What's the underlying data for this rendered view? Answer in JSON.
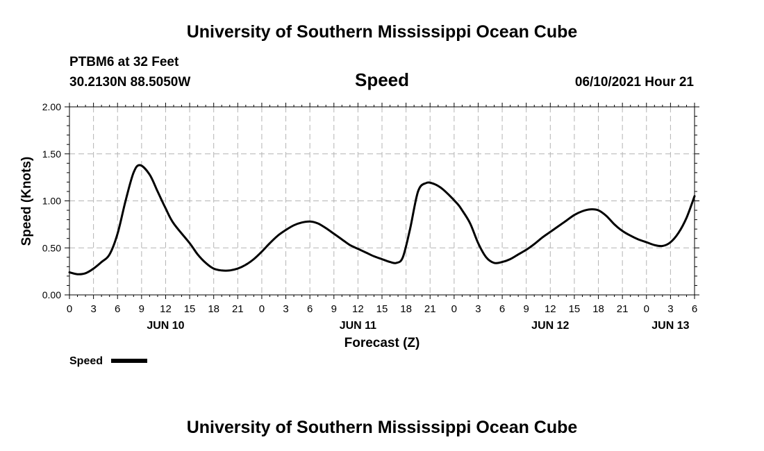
{
  "header": {
    "title": "University of Southern Mississippi Ocean Cube",
    "station": "PTBM6 at 32 Feet",
    "location": "30.2130N  88.5050W",
    "datetime": "06/10/2021 Hour 21"
  },
  "footer": {
    "title": "University of Southern Mississippi Ocean Cube"
  },
  "legend": {
    "label": "Speed",
    "line_color": "#000000"
  },
  "colors": {
    "line": "#000000",
    "grid": "#b3b3b3",
    "background": "#ffffff"
  },
  "chart_data": {
    "type": "line",
    "title": "Speed",
    "xlabel": "Forecast (Z)",
    "ylabel": "Speed (Knots)",
    "ylim": [
      0,
      2
    ],
    "xlim": [
      0,
      78
    ],
    "x_unit": "hours since JUN 10 00Z",
    "x_tick_labels": [
      "0",
      "3",
      "6",
      "9",
      "12",
      "15",
      "18",
      "21",
      "0",
      "3",
      "6",
      "9",
      "12",
      "15",
      "18",
      "21",
      "0",
      "3",
      "6",
      "9",
      "12",
      "15",
      "18",
      "21",
      "0",
      "3",
      "6"
    ],
    "y_ticks": [
      0,
      0.5,
      1,
      1.5,
      2
    ],
    "y_tick_labels": [
      "0.00",
      "0.50",
      "1.00",
      "1.50",
      "2.00"
    ],
    "date_labels": [
      {
        "label": "JUN 10",
        "x": 12
      },
      {
        "label": "JUN 11",
        "x": 36
      },
      {
        "label": "JUN 12",
        "x": 60
      },
      {
        "label": "JUN 13",
        "x": 75
      }
    ],
    "grid": true,
    "legend_position": "bottom-left",
    "series": [
      {
        "name": "Speed",
        "x": [
          0,
          1,
          2,
          3,
          4,
          5,
          6,
          7,
          8,
          8.8,
          10,
          11,
          12,
          13,
          15,
          16,
          17,
          18,
          19,
          20,
          21,
          22,
          23,
          24,
          25,
          26,
          27,
          28,
          29,
          30,
          31,
          32,
          33,
          34,
          35,
          36,
          37,
          38,
          39,
          40,
          40.8,
          41.6,
          42.5,
          43.5,
          44.5,
          45.5,
          46.5,
          47.5,
          48.5,
          49,
          50,
          51,
          52,
          53,
          54,
          55,
          56,
          57,
          58,
          59,
          60,
          61,
          62,
          63,
          64,
          65,
          66,
          67,
          68,
          69,
          70,
          71,
          72,
          73,
          74,
          75,
          76,
          77,
          78
        ],
        "values": [
          0.24,
          0.22,
          0.23,
          0.28,
          0.35,
          0.43,
          0.65,
          1.0,
          1.3,
          1.38,
          1.28,
          1.1,
          0.92,
          0.76,
          0.55,
          0.43,
          0.34,
          0.28,
          0.26,
          0.26,
          0.28,
          0.32,
          0.38,
          0.46,
          0.55,
          0.63,
          0.69,
          0.74,
          0.77,
          0.78,
          0.76,
          0.71,
          0.65,
          0.59,
          0.53,
          0.49,
          0.45,
          0.41,
          0.38,
          0.35,
          0.34,
          0.4,
          0.7,
          1.1,
          1.19,
          1.18,
          1.13,
          1.05,
          0.96,
          0.9,
          0.76,
          0.55,
          0.4,
          0.34,
          0.35,
          0.38,
          0.43,
          0.48,
          0.54,
          0.61,
          0.67,
          0.73,
          0.79,
          0.85,
          0.89,
          0.91,
          0.9,
          0.84,
          0.75,
          0.68,
          0.63,
          0.59,
          0.56,
          0.53,
          0.52,
          0.56,
          0.66,
          0.82,
          1.05
        ]
      }
    ]
  }
}
